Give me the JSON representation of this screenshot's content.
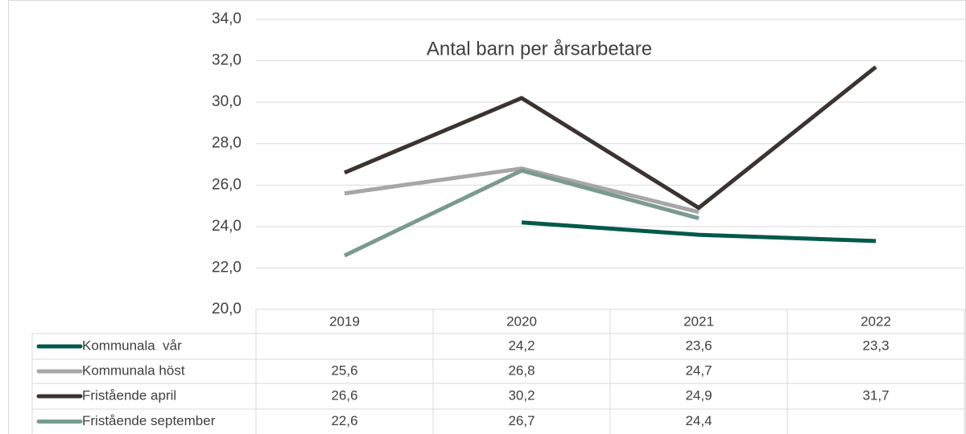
{
  "chart_data": {
    "type": "line",
    "title": "Antal barn per årsarbetare",
    "categories": [
      "2019",
      "2020",
      "2021",
      "2022"
    ],
    "series": [
      {
        "name": "Kommunala  vår",
        "color": "#00594a",
        "values": [
          null,
          24.2,
          23.6,
          23.3
        ],
        "value_labels": [
          null,
          "24,2",
          "23,6",
          "23,3"
        ]
      },
      {
        "name": "Kommunala höst",
        "color": "#a6a6a6",
        "values": [
          25.6,
          26.8,
          24.7,
          null
        ],
        "value_labels": [
          "25,6",
          "26,8",
          "24,7",
          null
        ]
      },
      {
        "name": "Fristående april",
        "color": "#3b3330",
        "values": [
          26.6,
          30.2,
          24.9,
          31.7
        ],
        "value_labels": [
          "26,6",
          "30,2",
          "24,9",
          "31,7"
        ]
      },
      {
        "name": "Fristående september",
        "color": "#7a9a8e",
        "values": [
          22.6,
          26.7,
          24.4,
          null
        ],
        "value_labels": [
          "22,6",
          "26,7",
          "24,4",
          null
        ]
      }
    ],
    "ylim": [
      20,
      34
    ],
    "yticks": [
      {
        "value": 20,
        "label": "20,0"
      },
      {
        "value": 22,
        "label": "22,0"
      },
      {
        "value": 24,
        "label": "24,0"
      },
      {
        "value": 26,
        "label": "26,0"
      },
      {
        "value": 28,
        "label": "28,0"
      },
      {
        "value": 30,
        "label": "30,0"
      },
      {
        "value": 32,
        "label": "32,0"
      },
      {
        "value": 34,
        "label": "34,0"
      }
    ],
    "grid": true
  }
}
